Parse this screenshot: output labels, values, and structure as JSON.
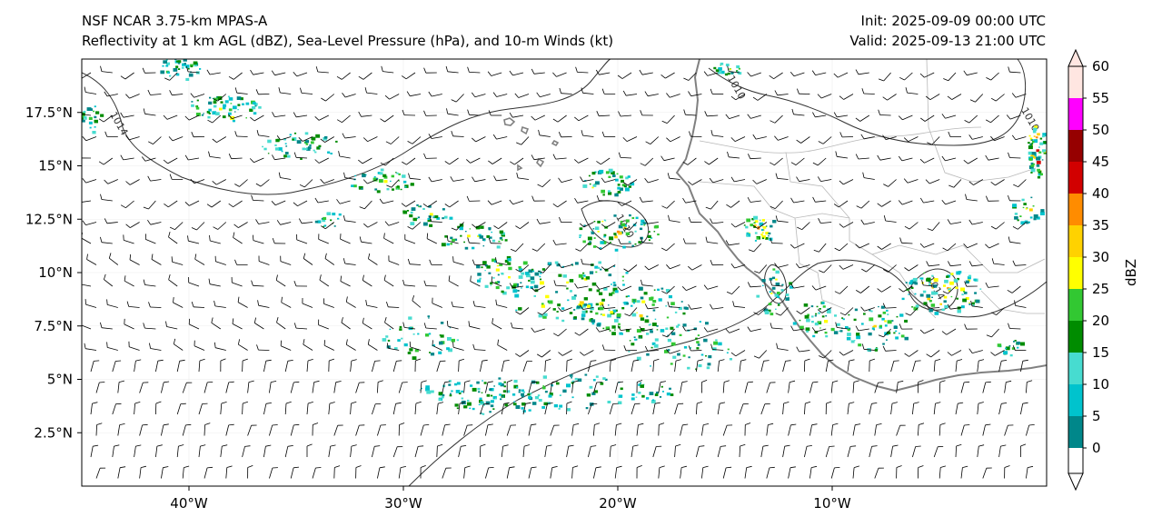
{
  "header": {
    "model": "NSF NCAR 3.75-km MPAS-A",
    "fields": "Reflectivity at 1 km AGL (dBZ), Sea-Level Pressure (hPa), and 10-m Winds (kt)",
    "init": "Init: 2025-09-09 00:00 UTC",
    "valid": "Valid: 2025-09-13 21:00 UTC"
  },
  "map": {
    "lon_range": [
      -45,
      0
    ],
    "lat_range": [
      0,
      20
    ],
    "lon_ticks": [
      {
        "value": -40,
        "label": "40°W"
      },
      {
        "value": -30,
        "label": "30°W"
      },
      {
        "value": -20,
        "label": "20°W"
      },
      {
        "value": -10,
        "label": "10°W"
      }
    ],
    "lat_ticks": [
      {
        "value": 2.5,
        "label": "2.5°N"
      },
      {
        "value": 5,
        "label": "5°N"
      },
      {
        "value": 7.5,
        "label": "7.5°N"
      },
      {
        "value": 10,
        "label": "10°N"
      },
      {
        "value": 12.5,
        "label": "12.5°N"
      },
      {
        "value": 15,
        "label": "15°N"
      },
      {
        "value": 17.5,
        "label": "17.5°N"
      }
    ],
    "isobar_labels": [
      {
        "text": "1014",
        "lon": -43.4,
        "lat": 16.9
      },
      {
        "text": "1010",
        "lon": -14.6,
        "lat": 18.6
      },
      {
        "text": "1010",
        "lon": -0.9,
        "lat": 17.1
      },
      {
        "text": "1010",
        "lon": -19.8,
        "lat": 12.1
      },
      {
        "text": "1014",
        "lon": -5.3,
        "lat": 9.2
      }
    ],
    "colors": {
      "coastline": "#808080",
      "isobar": "#333333",
      "border": "#b0b0b0"
    }
  },
  "colorbar": {
    "label": "dBZ",
    "levels": [
      0,
      5,
      10,
      15,
      20,
      25,
      30,
      35,
      40,
      45,
      50,
      55,
      60
    ],
    "tick_labels": [
      "0",
      "5",
      "10",
      "15",
      "20",
      "25",
      "30",
      "35",
      "40",
      "45",
      "50",
      "55",
      "60"
    ],
    "colors": [
      "#00878a",
      "#00c3cd",
      "#47dcd0",
      "#008c00",
      "#32c832",
      "#ffff00",
      "#ffd200",
      "#ff8c00",
      "#d20000",
      "#960000",
      "#ff00ff",
      "#ffe6e1"
    ]
  }
}
